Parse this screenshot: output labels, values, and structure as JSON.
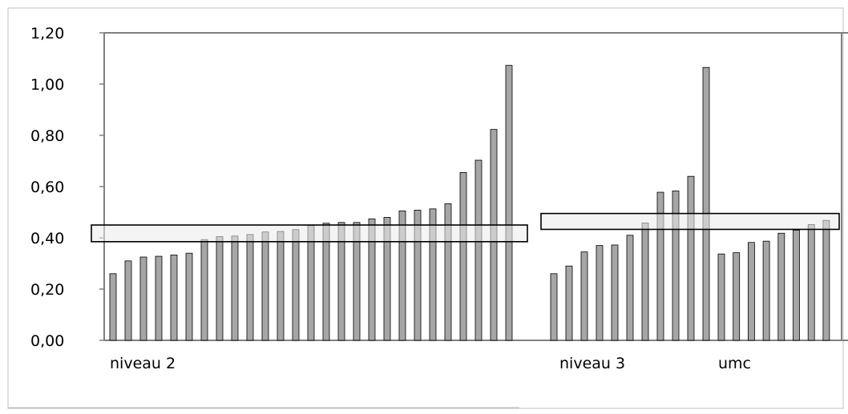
{
  "chart_data": {
    "type": "bar",
    "ylim": [
      0,
      1.2
    ],
    "y_ticks": [
      "0,00",
      "0,20",
      "0,40",
      "0,60",
      "0,80",
      "1,00",
      "1,20"
    ],
    "y_tick_values": [
      0,
      0.2,
      0.4,
      0.6,
      0.8,
      1.0,
      1.2
    ],
    "grid": false,
    "bar_color": "#a6a6a6",
    "bar_outline": "#000000",
    "groups": [
      {
        "label": "niveau 2",
        "values": [
          0.26,
          0.31,
          0.325,
          0.328,
          0.333,
          0.34,
          0.393,
          0.405,
          0.407,
          0.413,
          0.423,
          0.425,
          0.432,
          0.448,
          0.457,
          0.46,
          0.46,
          0.474,
          0.48,
          0.505,
          0.508,
          0.513,
          0.533,
          0.655,
          0.703,
          0.823,
          1.073
        ],
        "band": [
          0.385,
          0.45
        ]
      },
      {
        "label": "niveau 3",
        "values": [
          0.26,
          0.29,
          0.345,
          0.37,
          0.372,
          0.41,
          0.458,
          0.578,
          0.583,
          0.64,
          1.065
        ],
        "band": [
          0.433,
          0.495
        ]
      },
      {
        "label": "umc",
        "values": [
          0.337,
          0.342,
          0.382,
          0.387,
          0.418,
          0.43,
          0.452,
          0.468
        ]
      }
    ]
  }
}
